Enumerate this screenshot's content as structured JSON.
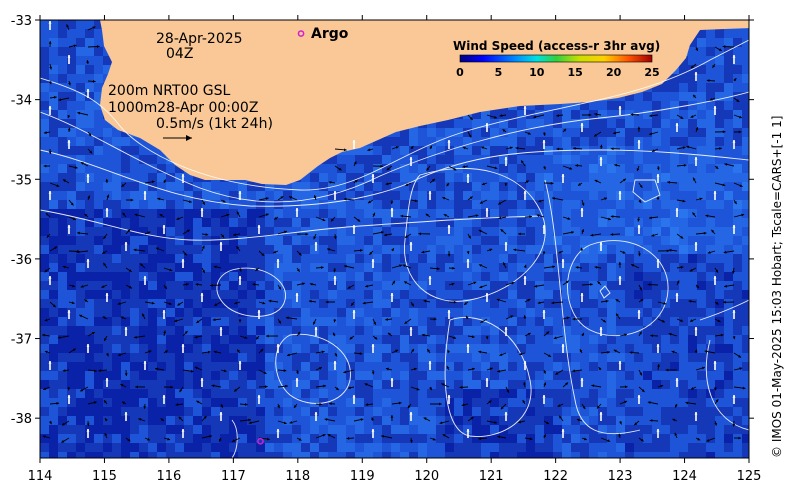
{
  "chart_data": {
    "type": "map",
    "x_ticks": [
      114,
      115,
      116,
      117,
      118,
      119,
      120,
      121,
      122,
      123,
      124,
      125
    ],
    "y_ticks": [
      -33,
      -34,
      -35,
      -36,
      -37,
      -38
    ],
    "xlim": [
      114,
      125
    ],
    "ylim": [
      -38.5,
      -33
    ],
    "annotations": {
      "date": "28-Apr-2025",
      "time": "04Z",
      "depth_line1": "200m  NRT00 GSL",
      "depth_line2": "1000m28-Apr 00:00Z",
      "scale": "0.5m/s (1kt 24h)"
    },
    "argo_label": "Argo",
    "argo_floats": [
      {
        "lon": 118.05,
        "lat": -33.17
      },
      {
        "lon": 117.42,
        "lat": -38.29
      }
    ],
    "legend": {
      "title": "Wind Speed (access-r 3hr avg)",
      "ticks": [
        0,
        5,
        10,
        15,
        20,
        25
      ]
    },
    "credit": "© IMOS 01-May-2025 15:03 Hobart; Tscale=CARS+[-1 1]",
    "colors": {
      "land": "#f9c896",
      "ocean_dark": "#0a22a8",
      "ocean_mid": "#1e55d8",
      "ocean_light": "#2a75ee",
      "argo": "#d020d0"
    }
  }
}
